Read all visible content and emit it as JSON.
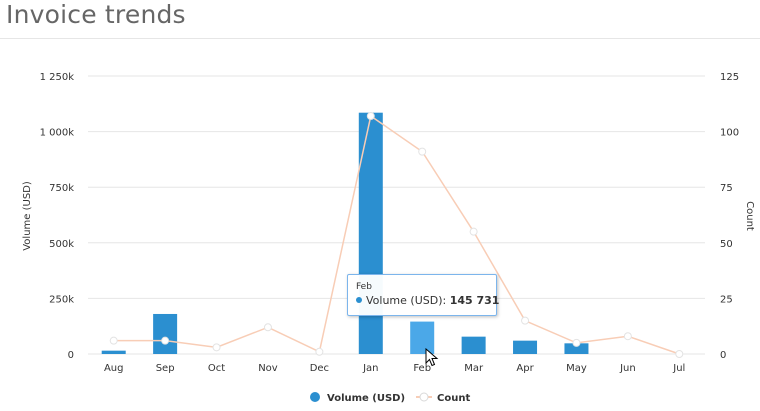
{
  "page": {
    "title": "Invoice trends"
  },
  "chart_data": {
    "type": "bar",
    "categories": [
      "Aug",
      "Sep",
      "Oct",
      "Nov",
      "Dec",
      "Jan",
      "Feb",
      "Mar",
      "Apr",
      "May",
      "Jun",
      "Jul"
    ],
    "series": [
      {
        "name": "Volume (USD)",
        "type": "bar",
        "axis": "left",
        "values": [
          15000,
          180000,
          0,
          0,
          0,
          1085000,
          145731,
          78000,
          60000,
          48000,
          0,
          0
        ]
      },
      {
        "name": "Count",
        "type": "line",
        "axis": "right",
        "values": [
          6,
          6,
          3,
          12,
          1,
          107,
          91,
          55,
          15,
          5,
          8,
          0
        ]
      }
    ],
    "left_axis": {
      "title": "Volume (USD)",
      "min": 0,
      "max": 1250000,
      "ticks": [
        0,
        250000,
        500000,
        750000,
        1000000,
        1250000
      ],
      "tick_labels": [
        "0",
        "250k",
        "500k",
        "750k",
        "1 000k",
        "1 250k"
      ]
    },
    "right_axis": {
      "title": "Count",
      "min": 0,
      "max": 125,
      "ticks": [
        0,
        25,
        50,
        75,
        100,
        125
      ],
      "tick_labels": [
        "0",
        "25",
        "50",
        "75",
        "100",
        "125"
      ]
    },
    "grid": true,
    "legend_position": "bottom-center",
    "highlighted_category": "Feb",
    "colors": {
      "bar": "#2b8fd0",
      "bar_hover": "#4ba8e8",
      "line": "#f8cdb6",
      "grid": "#e6e6e6"
    }
  },
  "tooltip": {
    "header": "Feb",
    "label": "Volume (USD):",
    "value": "145 731"
  }
}
